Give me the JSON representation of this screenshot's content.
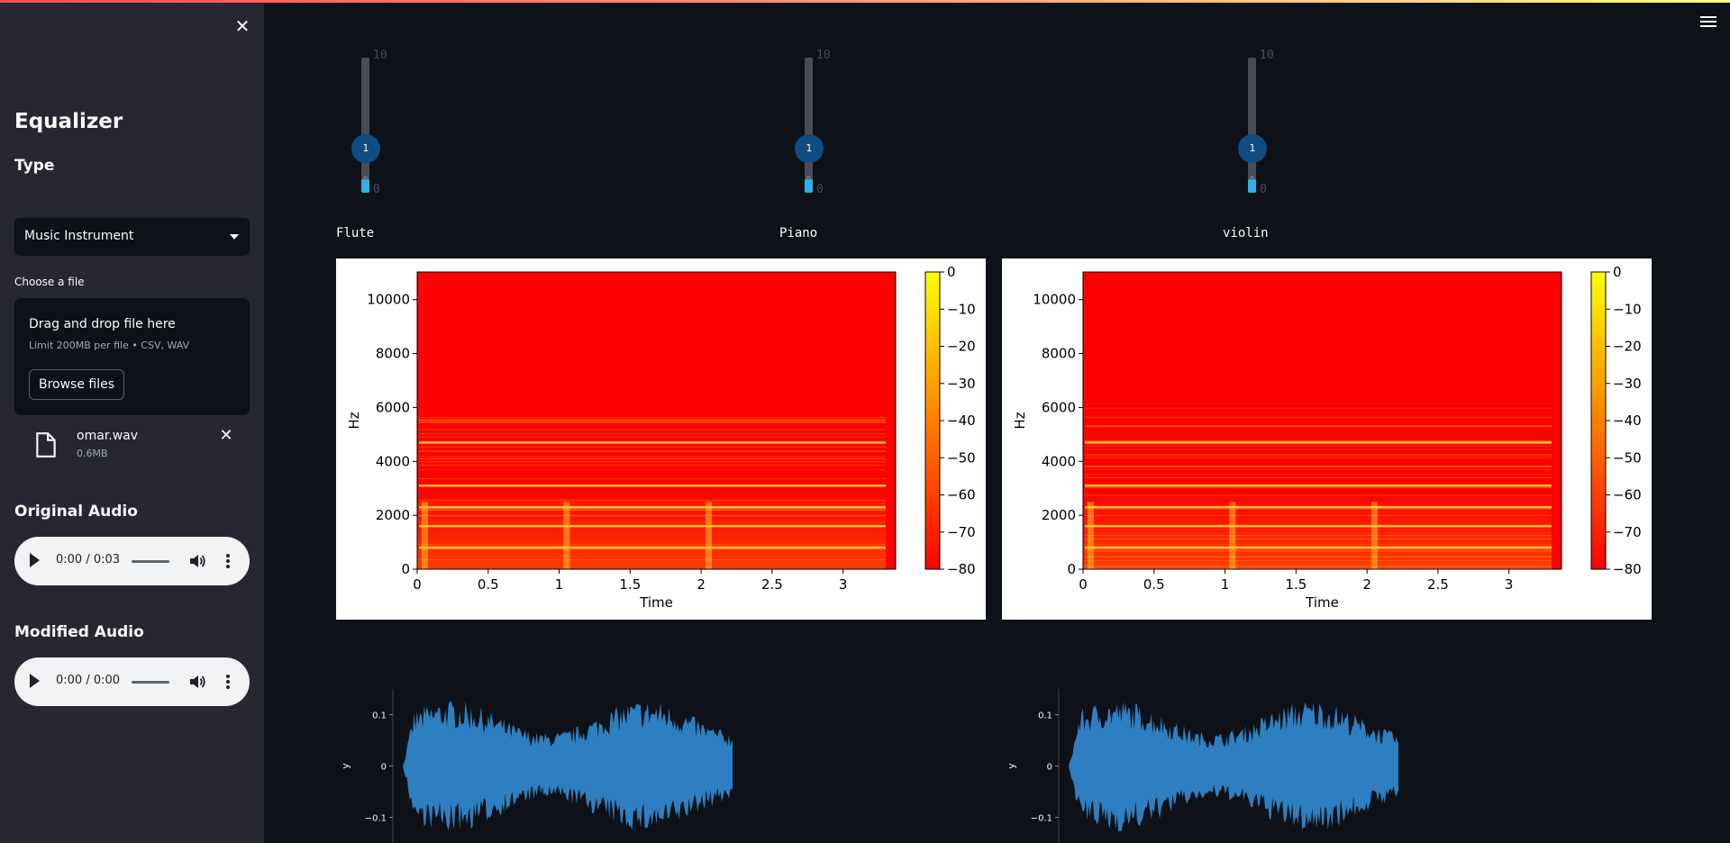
{
  "sidebar": {
    "title": "Equalizer",
    "type_label": "Type",
    "select_value": "Music Instrument",
    "file_label": "Choose a file",
    "dropzone": {
      "title": "Drag and drop file here",
      "subtitle": "Limit 200MB per file • CSV, WAV",
      "browse_label": "Browse files"
    },
    "file": {
      "name": "omar.wav",
      "size": "0.6MB"
    },
    "original_audio_label": "Original Audio",
    "original_time": "0:00 / 0:03",
    "modified_audio_label": "Modified Audio",
    "modified_time": "0:00 / 0:00"
  },
  "sliders": [
    {
      "label": "Flute",
      "value": "1",
      "min": "0",
      "max": "10",
      "level": 0.1
    },
    {
      "label": "Piano",
      "value": "1",
      "min": "0",
      "max": "10",
      "level": 0.1
    },
    {
      "label": "violin",
      "value": "1",
      "min": "0",
      "max": "10",
      "level": 0.1
    }
  ],
  "colors": {
    "accent": "#ff4b4b",
    "slider_thumb": "#0f4c81",
    "slider_fill": "#29b5e8",
    "wave": "#2e7fc1"
  },
  "chart_data": [
    {
      "type": "heatmap",
      "title": "",
      "xlabel": "Time",
      "ylabel": "Hz",
      "xticks": [
        "0",
        "0.5",
        "1",
        "1.5",
        "2",
        "2.5",
        "3"
      ],
      "yticks": [
        "0",
        "2000",
        "4000",
        "6000",
        "8000",
        "10000"
      ],
      "xlim": [
        0,
        3.37
      ],
      "ylim": [
        0,
        11025
      ],
      "colorbar_ticks": [
        "0",
        "−10",
        "−20",
        "−30",
        "−40",
        "−50",
        "−60",
        "−70",
        "−80"
      ],
      "colorbar_range": [
        -80,
        0
      ],
      "colormap": "autumn",
      "harmonic_bands_hz": [
        800,
        1600,
        2300,
        3100,
        4700
      ],
      "onset_times": [
        0.05,
        1.05,
        2.05
      ]
    },
    {
      "type": "heatmap",
      "title": "",
      "xlabel": "Time",
      "ylabel": "Hz",
      "xticks": [
        "0",
        "0.5",
        "1",
        "1.5",
        "2",
        "2.5",
        "3"
      ],
      "yticks": [
        "0",
        "2000",
        "4000",
        "6000",
        "8000",
        "10000"
      ],
      "xlim": [
        0,
        3.37
      ],
      "ylim": [
        0,
        11025
      ],
      "colorbar_ticks": [
        "0",
        "−10",
        "−20",
        "−30",
        "−40",
        "−50",
        "−60",
        "−70",
        "−80"
      ],
      "colorbar_range": [
        -80,
        0
      ],
      "colormap": "autumn",
      "harmonic_bands_hz": [
        800,
        1600,
        2300,
        3100,
        4700
      ],
      "onset_times": [
        0.05,
        1.05,
        2.05
      ]
    },
    {
      "type": "area",
      "title": "",
      "xlabel": "",
      "ylabel": "y",
      "yticks": [
        "0.1",
        "0",
        "−0.1"
      ],
      "ylim": [
        -0.15,
        0.15
      ],
      "duration": 3.37,
      "amplitude_peak": 0.13
    },
    {
      "type": "area",
      "title": "",
      "xlabel": "",
      "ylabel": "y",
      "yticks": [
        "0.1",
        "0",
        "−0.1"
      ],
      "ylim": [
        -0.15,
        0.15
      ],
      "duration": 3.37,
      "amplitude_peak": 0.13
    }
  ]
}
